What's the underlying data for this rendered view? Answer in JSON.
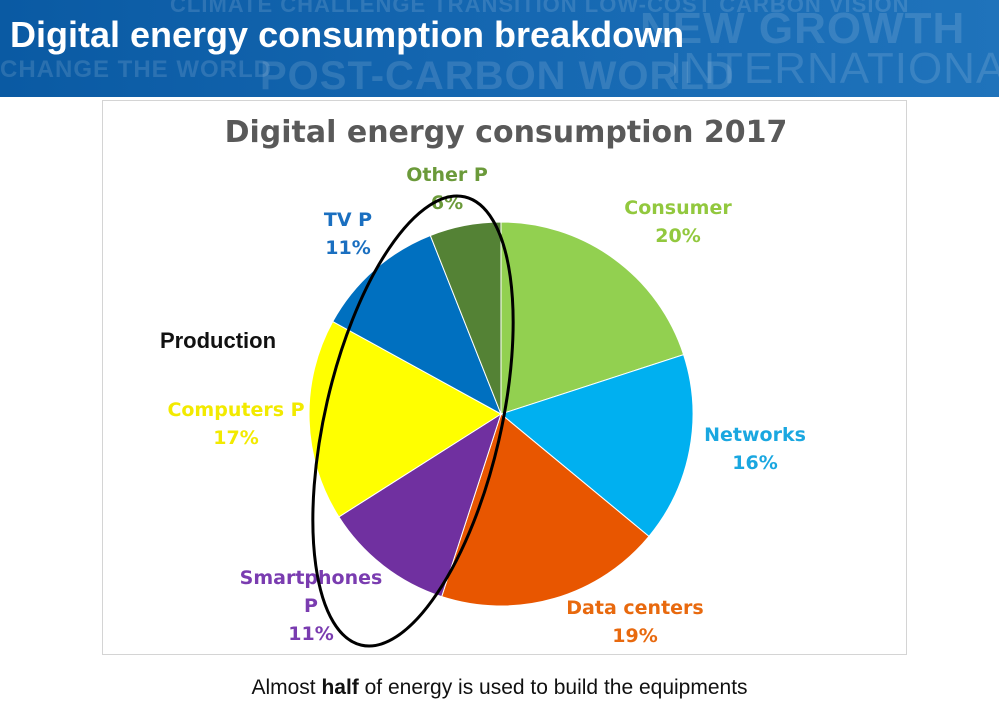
{
  "slide": {
    "title": "Digital energy consumption breakdown",
    "banner_watermark": [
      "CLIMATE CHALLENGE TRANSITION LOW-COST CARBON VISION",
      "NEW GROWTH",
      "CHANGE THE WORLD",
      "POST-CARBON WORLD",
      "INTERNATIONAL"
    ],
    "caption_before": "Almost ",
    "caption_bold": "half",
    "caption_after": " of energy is used to build the equipments"
  },
  "colors": {
    "banner": "#0a5aa3",
    "consumer": "#92d050",
    "networks": "#00b0f0",
    "data_centers": "#e85600",
    "smartphones": "#7030a0",
    "computers": "#ffff00",
    "tv": "#0070c0",
    "other": "#548235"
  },
  "chart_data": {
    "type": "pie",
    "title": "Digital energy consumption 2017",
    "unit": "%",
    "slices": [
      {
        "label": "Consumer",
        "value": 20,
        "value_label": "20%",
        "color": "#92d050",
        "label_color": "#92c83e"
      },
      {
        "label": "Networks",
        "value": 16,
        "value_label": "16%",
        "color": "#00b0f0",
        "label_color": "#1aa7e0"
      },
      {
        "label": "Data centers",
        "value": 19,
        "value_label": "19%",
        "color": "#e85600",
        "label_color": "#e8690e"
      },
      {
        "label": "Smartphones P",
        "value": 11,
        "value_label": "11%",
        "color": "#7030a0",
        "label_color": "#7a3cb0"
      },
      {
        "label": "Computers P",
        "value": 17,
        "value_label": "17%",
        "color": "#ffff00",
        "label_color": "#f2ea00"
      },
      {
        "label": "TV P",
        "value": 11,
        "value_label": "11%",
        "color": "#0070c0",
        "label_color": "#1a6fc0"
      },
      {
        "label": "Other P",
        "value": 6,
        "value_label": "6%",
        "color": "#548235",
        "label_color": "#6b9a3a"
      }
    ],
    "annotation": {
      "text": "Production",
      "highlight": "ellipse around production slices"
    }
  }
}
